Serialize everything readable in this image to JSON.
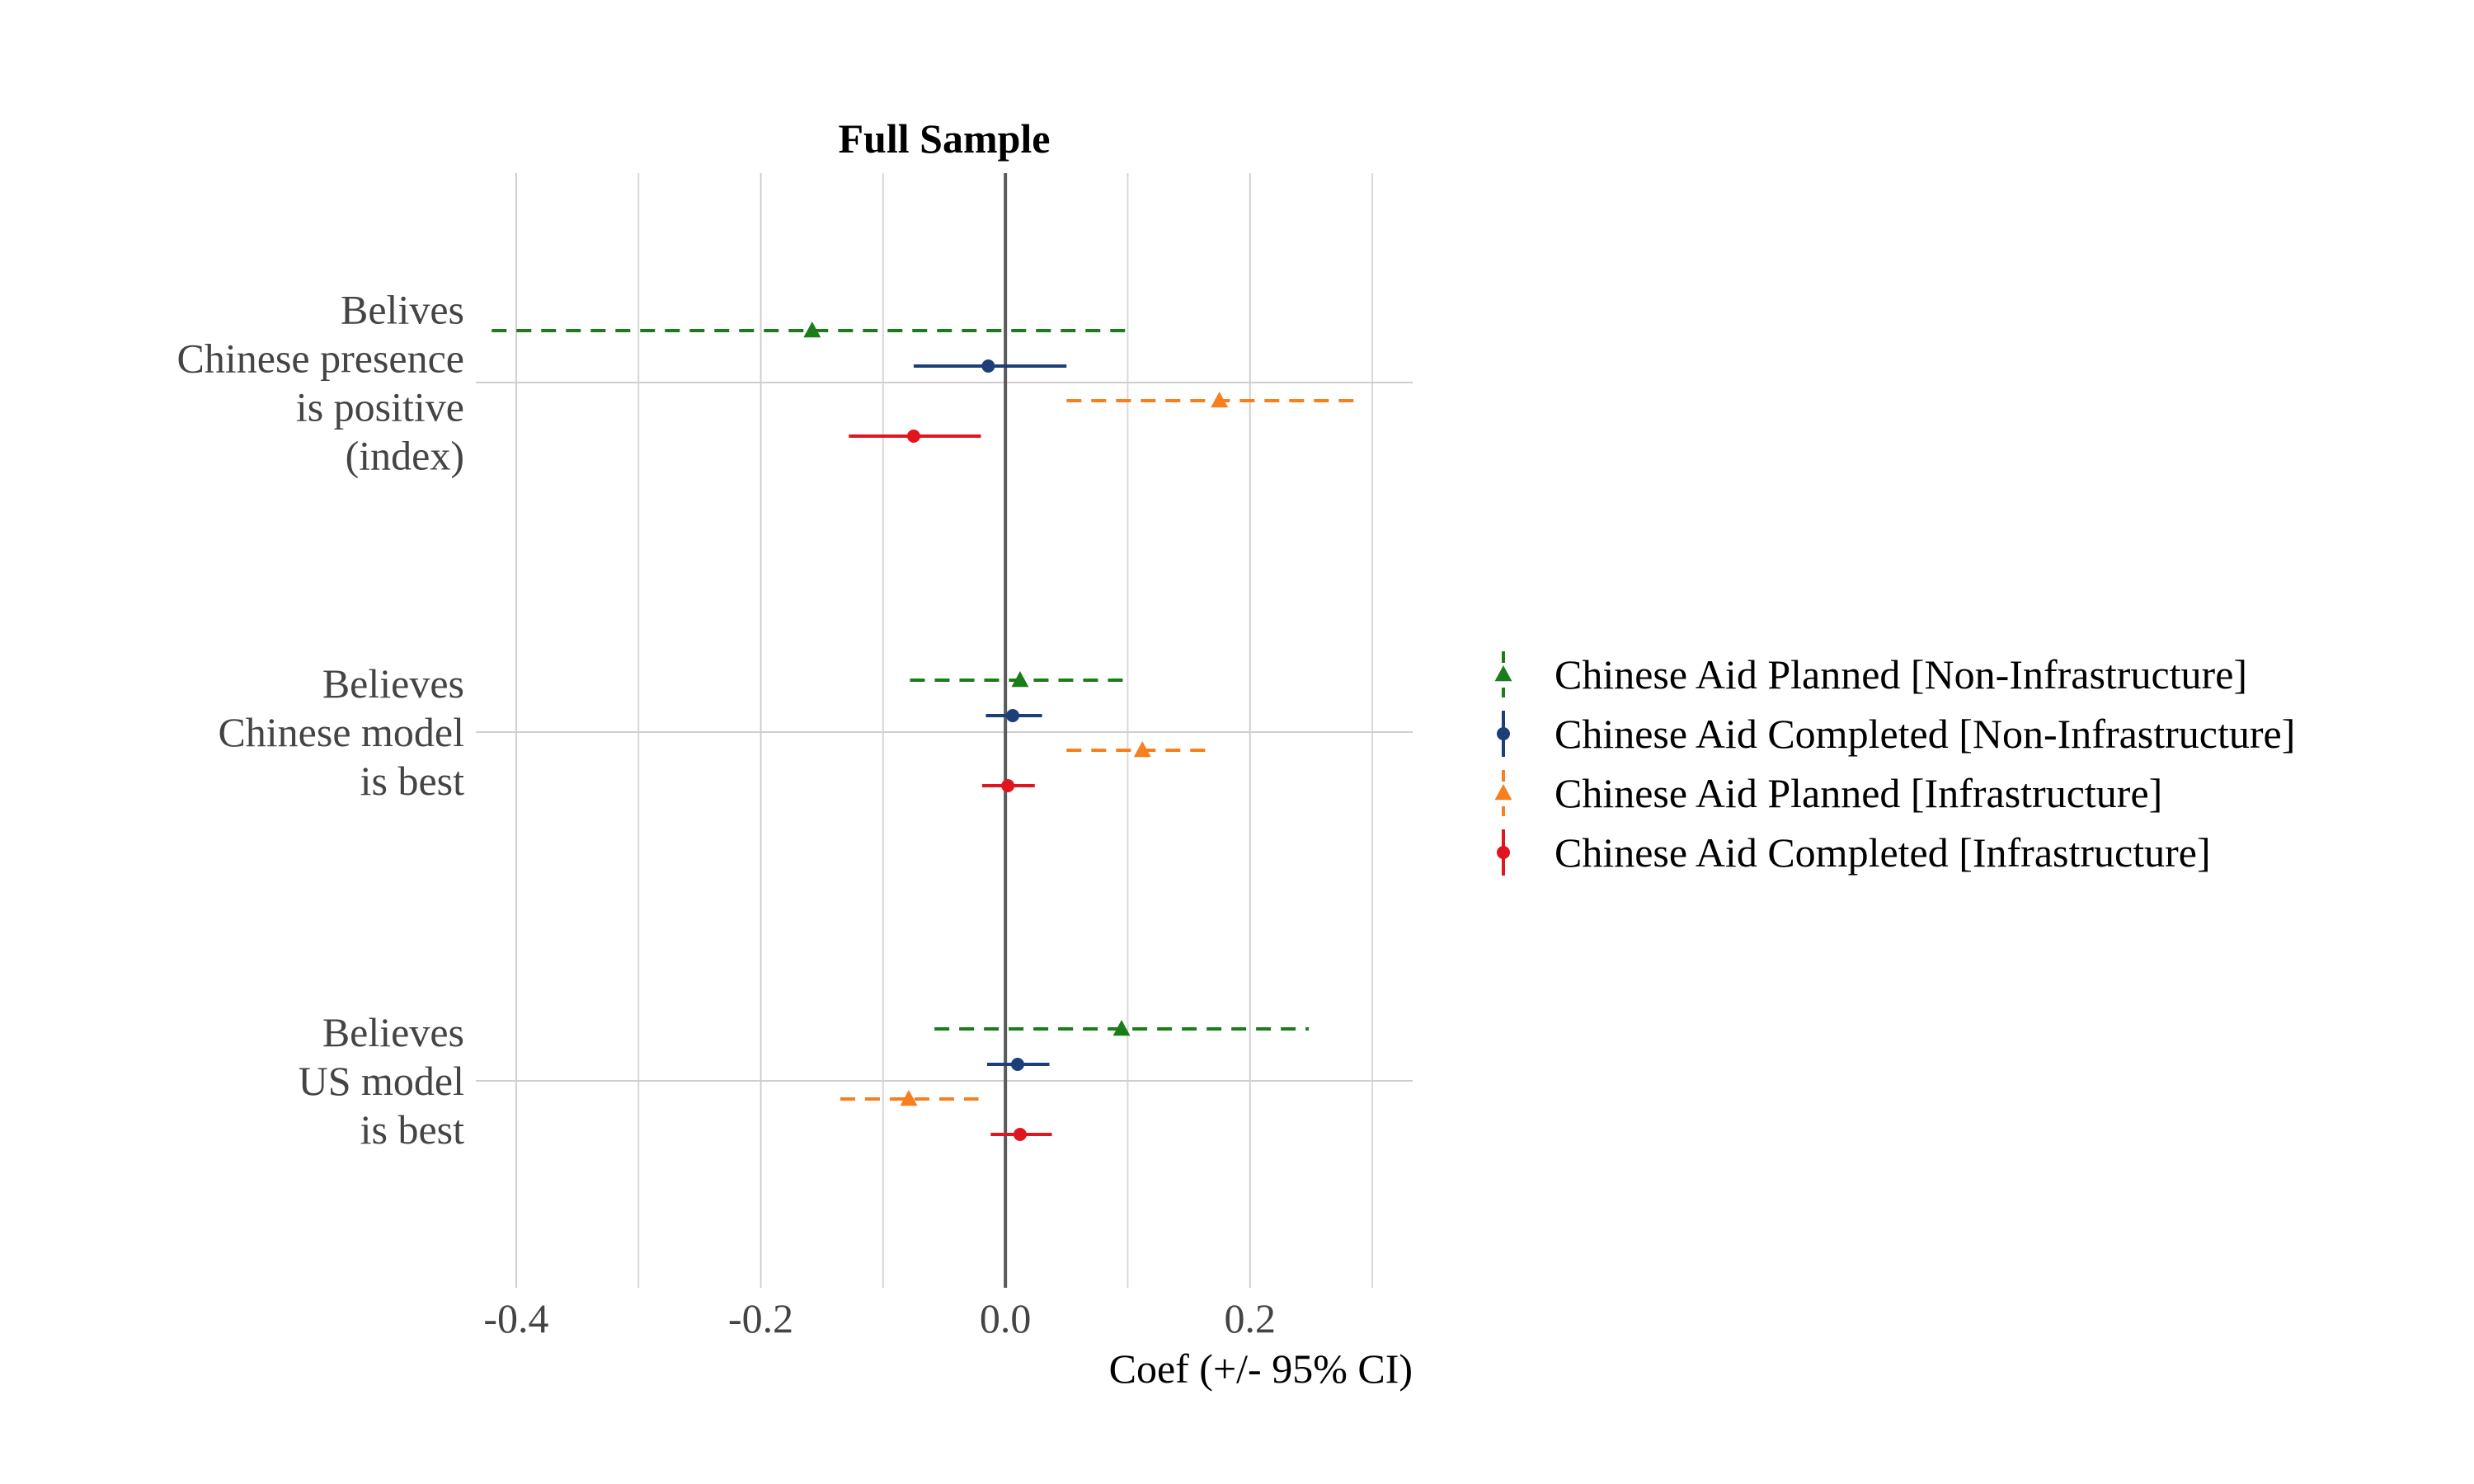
{
  "chart_data": {
    "type": "scatter",
    "title": "Full Sample",
    "xlabel": "Coef (+/- 95% CI)",
    "ylabel": "",
    "xlim": [
      -0.433,
      0.333
    ],
    "x_ticks": [
      -0.4,
      -0.2,
      0.0,
      0.2
    ],
    "x_tick_labels": [
      "-0.4",
      "-0.2",
      "0.0",
      "0.2"
    ],
    "grid": true,
    "zero_line": 0,
    "legend_position": "right",
    "categories": [
      {
        "lines": [
          "Belives",
          "Chinese presence",
          "is positive",
          "(index)"
        ]
      },
      {
        "lines": [
          "Believes",
          "Chinese model",
          "is best"
        ]
      },
      {
        "lines": [
          "Believes",
          "US model",
          "is best"
        ]
      }
    ],
    "series": [
      {
        "name": "Chinese Aid Planned [Non-Infrastructure]",
        "color": "#1a7d1a",
        "marker": "triangle",
        "dashed": true,
        "estimates": [
          -0.158,
          0.012,
          0.095
        ],
        "ci_low": [
          -0.42,
          -0.078,
          -0.058
        ],
        "ci_high": [
          0.105,
          0.103,
          0.248
        ]
      },
      {
        "name": "Chinese Aid Completed [Non-Infrastructure]",
        "color": "#1c3f7a",
        "marker": "circle",
        "dashed": false,
        "estimates": [
          -0.014,
          0.006,
          0.01
        ],
        "ci_low": [
          -0.075,
          -0.016,
          -0.015
        ],
        "ci_high": [
          0.05,
          0.03,
          0.036
        ]
      },
      {
        "name": "Chinese Aid Planned [Infrastructure]",
        "color": "#f77f1d",
        "marker": "triangle",
        "dashed": true,
        "estimates": [
          0.175,
          0.112,
          -0.079
        ],
        "ci_low": [
          0.05,
          0.05,
          -0.135
        ],
        "ci_high": [
          0.29,
          0.165,
          -0.022
        ]
      },
      {
        "name": "Chinese Aid Completed [Infrastructure]",
        "color": "#e0151f",
        "marker": "circle",
        "dashed": false,
        "estimates": [
          -0.075,
          0.002,
          0.012
        ],
        "ci_low": [
          -0.128,
          -0.019,
          -0.012
        ],
        "ci_high": [
          -0.02,
          0.024,
          0.038
        ]
      }
    ]
  }
}
